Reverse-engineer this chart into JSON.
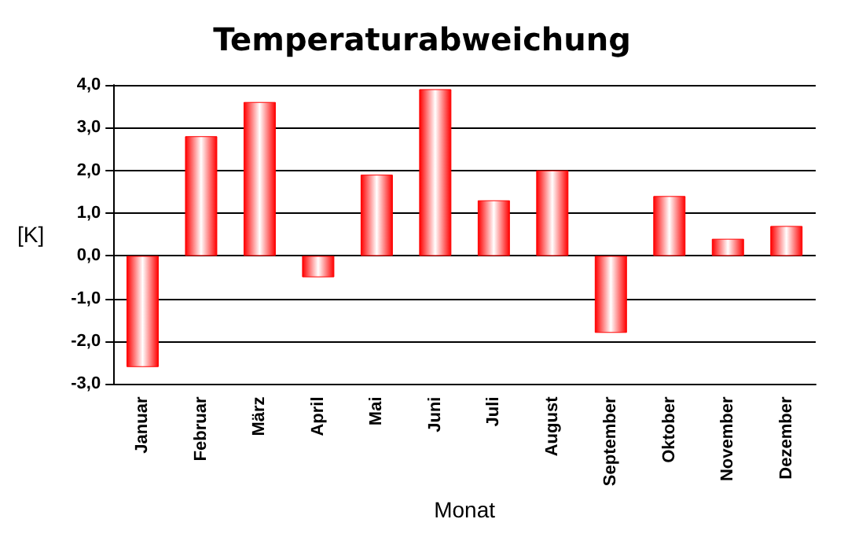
{
  "chart_data": {
    "type": "bar",
    "title": "Temperaturabweichung",
    "xlabel": "Monat",
    "ylabel": "[K]",
    "categories": [
      "Januar",
      "Februar",
      "März",
      "April",
      "Mai",
      "Juni",
      "Juli",
      "August",
      "September",
      "Oktober",
      "November",
      "Dezember"
    ],
    "values": [
      -2.6,
      2.8,
      3.6,
      -0.5,
      1.9,
      3.9,
      1.3,
      2.0,
      -1.8,
      1.4,
      0.4,
      0.7
    ],
    "color": "#ff0000",
    "ylim": [
      -3,
      4
    ],
    "yticks": [
      {
        "value": -3,
        "label": "-3,0"
      },
      {
        "value": -2,
        "label": "-2,0"
      },
      {
        "value": -1,
        "label": "-1,0"
      },
      {
        "value": 0,
        "label": "0,0"
      },
      {
        "value": 1,
        "label": "1,0"
      },
      {
        "value": 2,
        "label": "2,0"
      },
      {
        "value": 3,
        "label": "3,0"
      },
      {
        "value": 4,
        "label": "4,0"
      }
    ],
    "grid": "y"
  }
}
